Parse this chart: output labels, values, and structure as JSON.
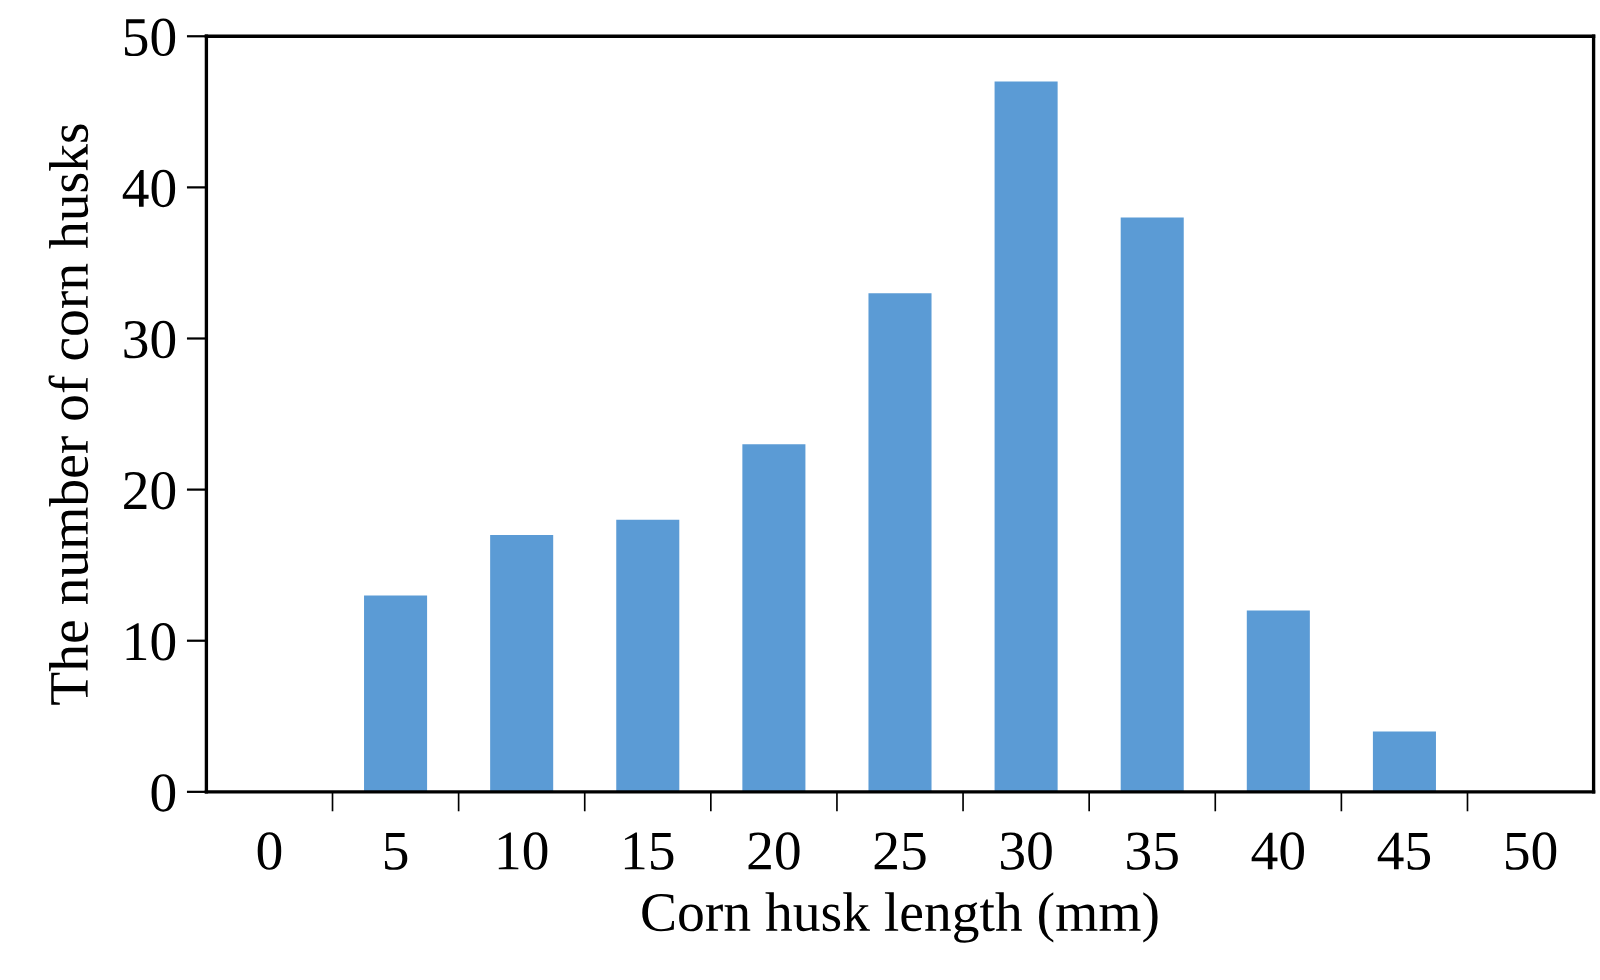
{
  "chart_data": {
    "type": "bar",
    "xlabel": "Corn husk length (mm)",
    "ylabel": "The number of corn husks",
    "categories": [
      "0",
      "5",
      "10",
      "15",
      "20",
      "25",
      "30",
      "35",
      "40",
      "45",
      "50"
    ],
    "values": [
      0,
      13,
      17,
      18,
      23,
      33,
      47,
      38,
      12,
      4,
      0
    ],
    "color": "#5b9bd5",
    "ylim": [
      0,
      50
    ],
    "yticks": [
      0,
      10,
      20,
      30,
      40,
      50
    ],
    "grid": false
  }
}
